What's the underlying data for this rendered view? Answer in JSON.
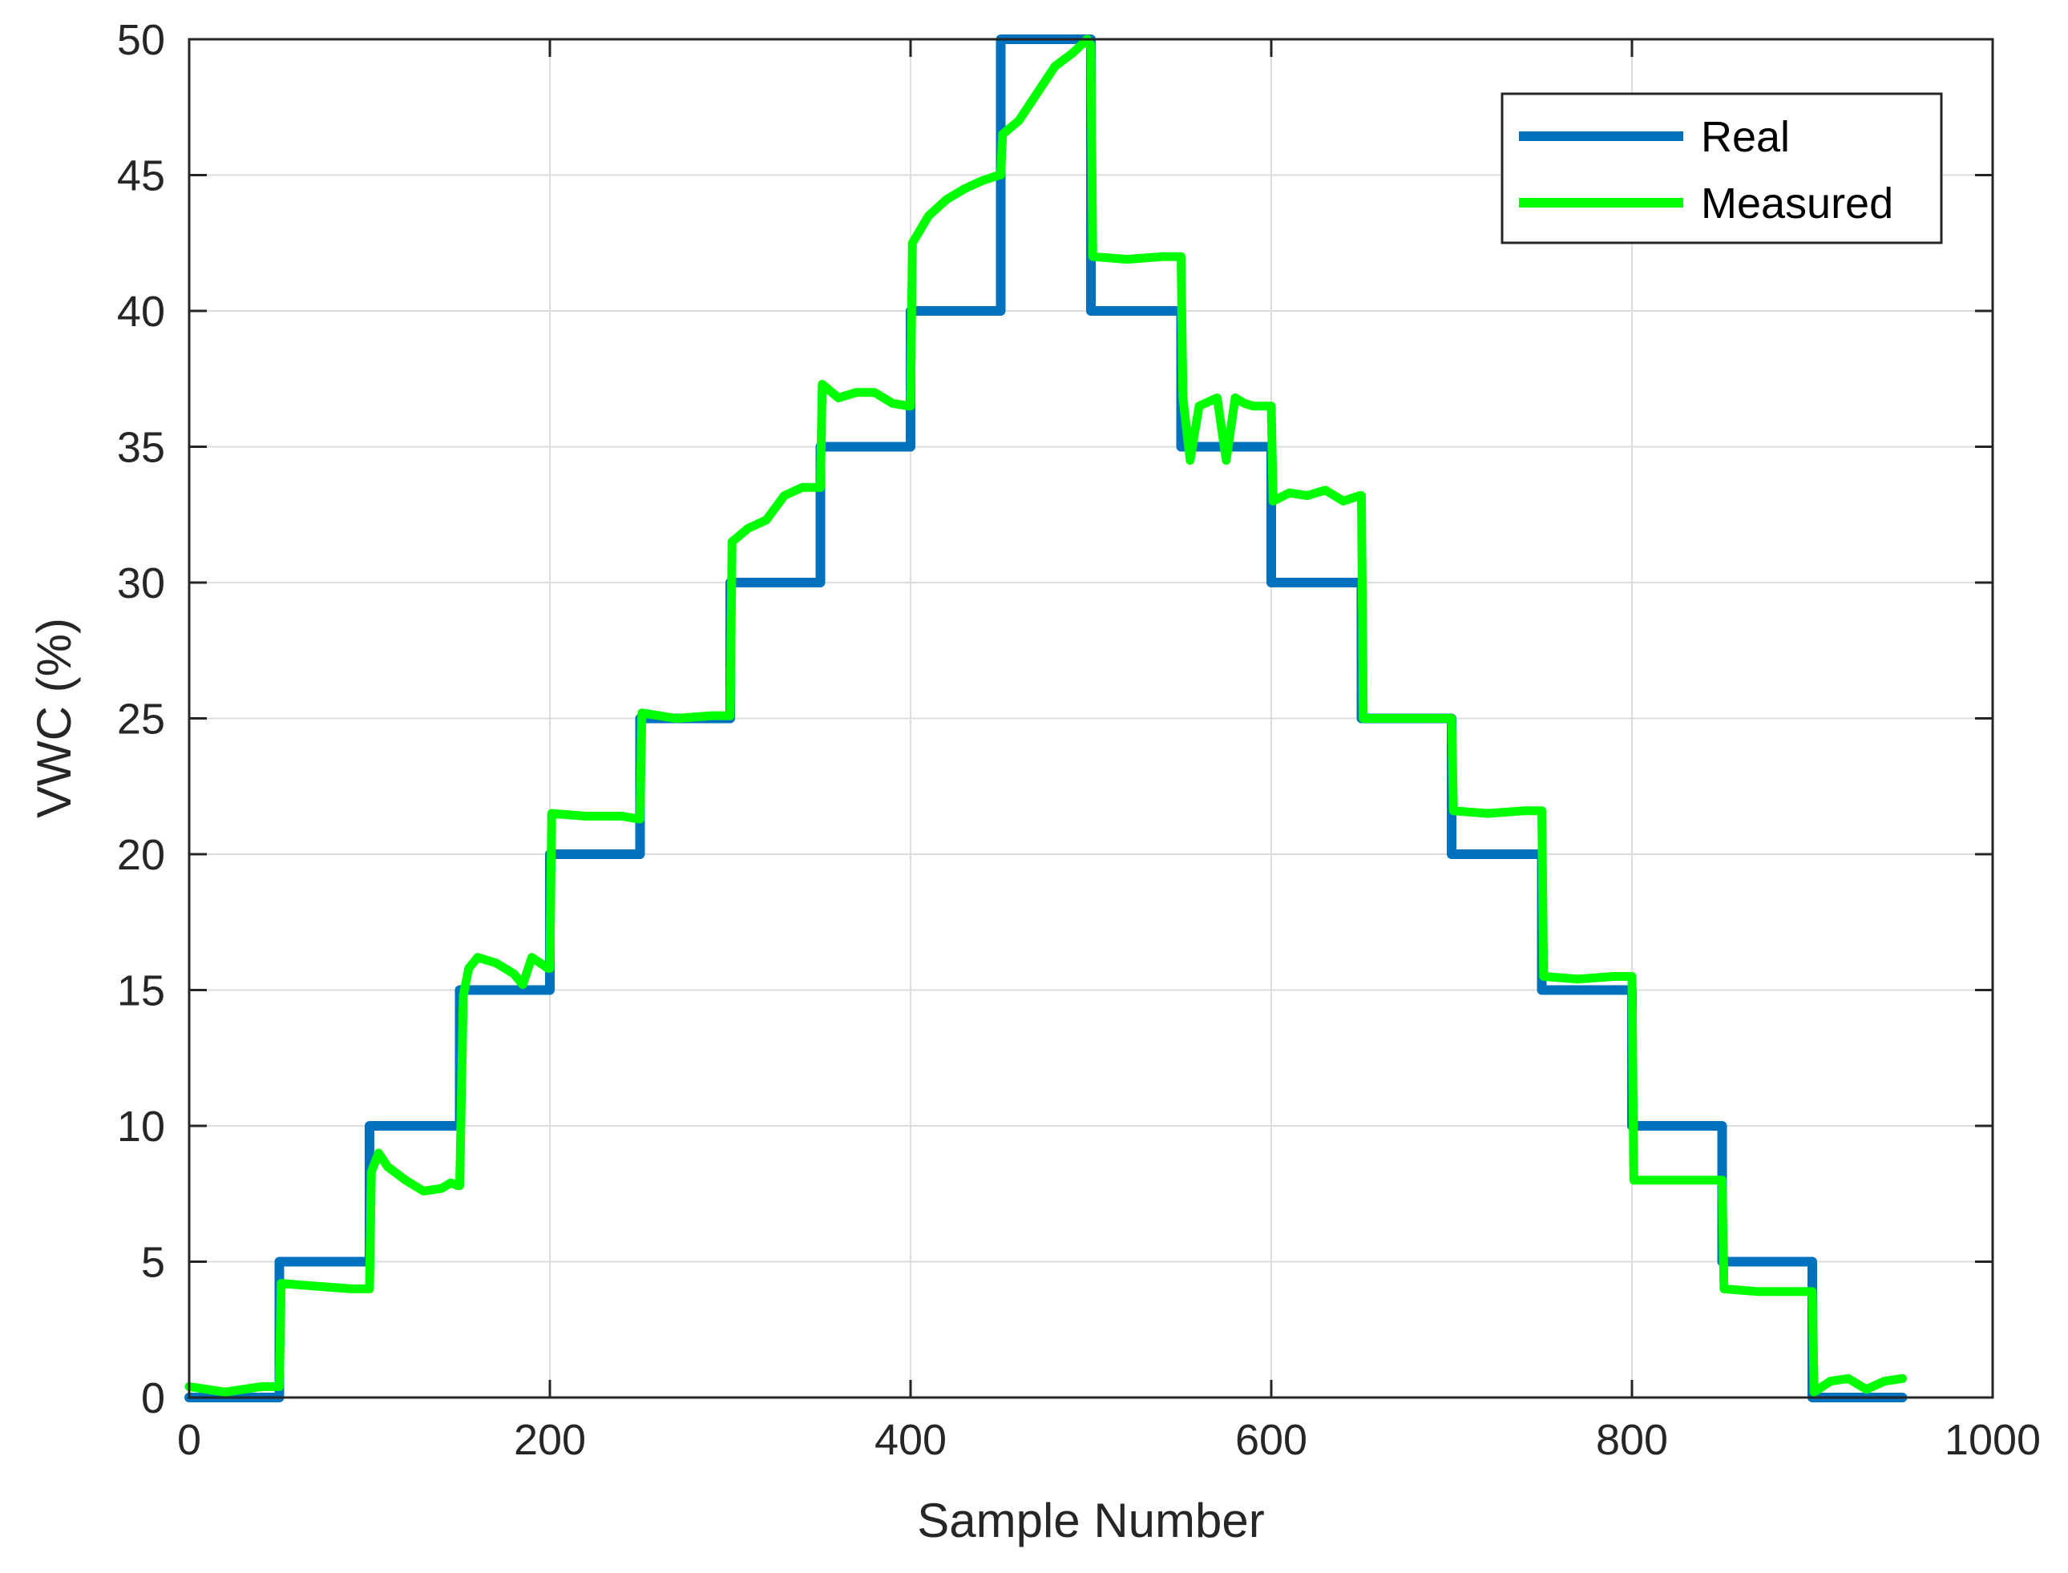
{
  "chart_data": {
    "type": "line",
    "xlabel": "Sample Number",
    "ylabel": "VWC (%)",
    "xlim": [
      0,
      1000
    ],
    "ylim": [
      0,
      50
    ],
    "xticks": [
      0,
      200,
      400,
      600,
      800,
      1000
    ],
    "yticks": [
      0,
      5,
      10,
      15,
      20,
      25,
      30,
      35,
      40,
      45,
      50
    ],
    "grid": true,
    "legend_position": "top-right",
    "series": [
      {
        "name": "Real",
        "color": "#0072BD",
        "x": [
          0,
          50,
          50,
          100,
          100,
          150,
          150,
          200,
          200,
          250,
          250,
          300,
          300,
          350,
          350,
          400,
          400,
          450,
          450,
          500,
          500,
          550,
          550,
          600,
          600,
          650,
          650,
          700,
          700,
          750,
          750,
          800,
          800,
          850,
          850,
          900,
          900,
          950
        ],
        "values": [
          0,
          0,
          5,
          5,
          10,
          10,
          15,
          15,
          20,
          20,
          25,
          25,
          30,
          30,
          35,
          35,
          40,
          40,
          50,
          50,
          40,
          40,
          35,
          35,
          30,
          30,
          25,
          25,
          20,
          20,
          15,
          15,
          10,
          10,
          5,
          5,
          0,
          0
        ]
      },
      {
        "name": "Measured",
        "color": "#00FF00",
        "x": [
          0,
          10,
          20,
          30,
          40,
          49,
          50,
          51,
          70,
          90,
          99,
          100,
          101,
          105,
          110,
          120,
          130,
          140,
          145,
          149,
          150,
          152,
          155,
          160,
          170,
          180,
          185,
          190,
          199,
          200,
          201,
          220,
          240,
          249,
          250,
          251,
          270,
          290,
          299,
          300,
          301,
          310,
          320,
          330,
          340,
          349,
          350,
          351,
          360,
          370,
          380,
          390,
          399,
          400,
          401,
          410,
          420,
          430,
          440,
          449,
          450,
          451,
          460,
          470,
          480,
          490,
          498,
          499,
          500,
          501,
          520,
          540,
          549,
          550,
          551,
          555,
          560,
          570,
          575,
          580,
          585,
          590,
          599,
          600,
          601,
          610,
          620,
          630,
          640,
          649,
          650,
          651,
          670,
          690,
          699,
          700,
          701,
          720,
          740,
          749,
          750,
          751,
          770,
          790,
          799,
          800,
          801,
          820,
          840,
          849,
          850,
          851,
          870,
          890,
          899,
          900,
          901,
          910,
          920,
          930,
          940,
          950
        ],
        "values": [
          0.4,
          0.3,
          0.2,
          0.3,
          0.4,
          0.4,
          0.4,
          4.2,
          4.1,
          4.0,
          4.0,
          4.0,
          8.3,
          9.0,
          8.5,
          8.0,
          7.6,
          7.7,
          7.9,
          7.8,
          7.8,
          14.8,
          15.8,
          16.2,
          16.0,
          15.6,
          15.2,
          16.2,
          15.8,
          15.8,
          21.5,
          21.4,
          21.4,
          21.3,
          21.3,
          25.2,
          25.0,
          25.1,
          25.1,
          25.1,
          31.5,
          32.0,
          32.3,
          33.2,
          33.5,
          33.5,
          33.5,
          37.3,
          36.8,
          37.0,
          37.0,
          36.6,
          36.5,
          36.5,
          42.5,
          43.5,
          44.1,
          44.5,
          44.8,
          45.0,
          45.0,
          46.5,
          47.0,
          48.0,
          49.0,
          49.5,
          50.0,
          49.8,
          49.8,
          42.0,
          41.9,
          42.0,
          42.0,
          42.0,
          36.8,
          34.5,
          36.5,
          36.8,
          34.5,
          36.8,
          36.6,
          36.5,
          36.5,
          36.5,
          33.0,
          33.3,
          33.2,
          33.4,
          33.0,
          33.2,
          33.2,
          25.0,
          25.0,
          25.0,
          25.0,
          25.0,
          21.6,
          21.5,
          21.6,
          21.6,
          21.6,
          15.5,
          15.4,
          15.5,
          15.5,
          15.5,
          8.0,
          8.0,
          8.0,
          8.0,
          8.0,
          4.0,
          3.9,
          3.9,
          3.9,
          3.9,
          0.2,
          0.6,
          0.7,
          0.3,
          0.6,
          0.7
        ]
      }
    ]
  }
}
